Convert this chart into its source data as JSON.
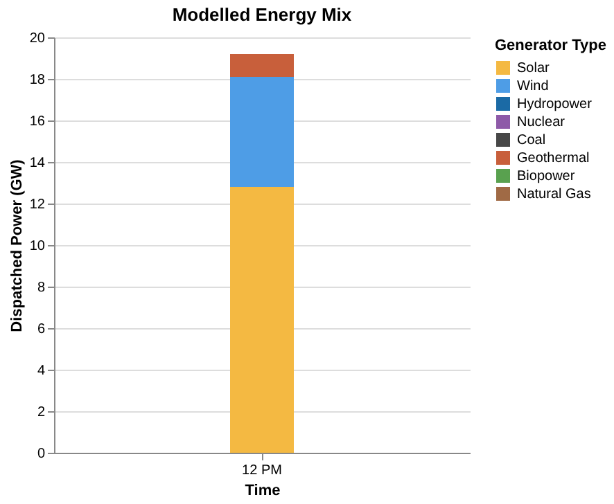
{
  "chart_data": {
    "type": "bar",
    "stacked": true,
    "title": "Modelled Energy Mix",
    "xlabel": "Time",
    "ylabel": "Dispatched Power (GW)",
    "legend_title": "Generator Type",
    "legend": "right",
    "grid": "y",
    "categories": [
      "12 PM"
    ],
    "ylim": [
      0,
      20
    ],
    "yticks": [
      0,
      2,
      4,
      6,
      8,
      10,
      12,
      14,
      16,
      18,
      20
    ],
    "series": [
      {
        "name": "Solar",
        "color": "#f4b942",
        "values": [
          12.8
        ]
      },
      {
        "name": "Wind",
        "color": "#4e9de6",
        "values": [
          5.3
        ]
      },
      {
        "name": "Hydropower",
        "color": "#1b6aa5",
        "values": [
          0
        ]
      },
      {
        "name": "Nuclear",
        "color": "#8e5aa8",
        "values": [
          0
        ]
      },
      {
        "name": "Coal",
        "color": "#474747",
        "values": [
          0
        ]
      },
      {
        "name": "Geothermal",
        "color": "#c85f3b",
        "values": [
          1.1
        ]
      },
      {
        "name": "Biopower",
        "color": "#59a14f",
        "values": [
          0
        ]
      },
      {
        "name": "Natural Gas",
        "color": "#a06a45",
        "values": [
          0
        ]
      }
    ]
  }
}
